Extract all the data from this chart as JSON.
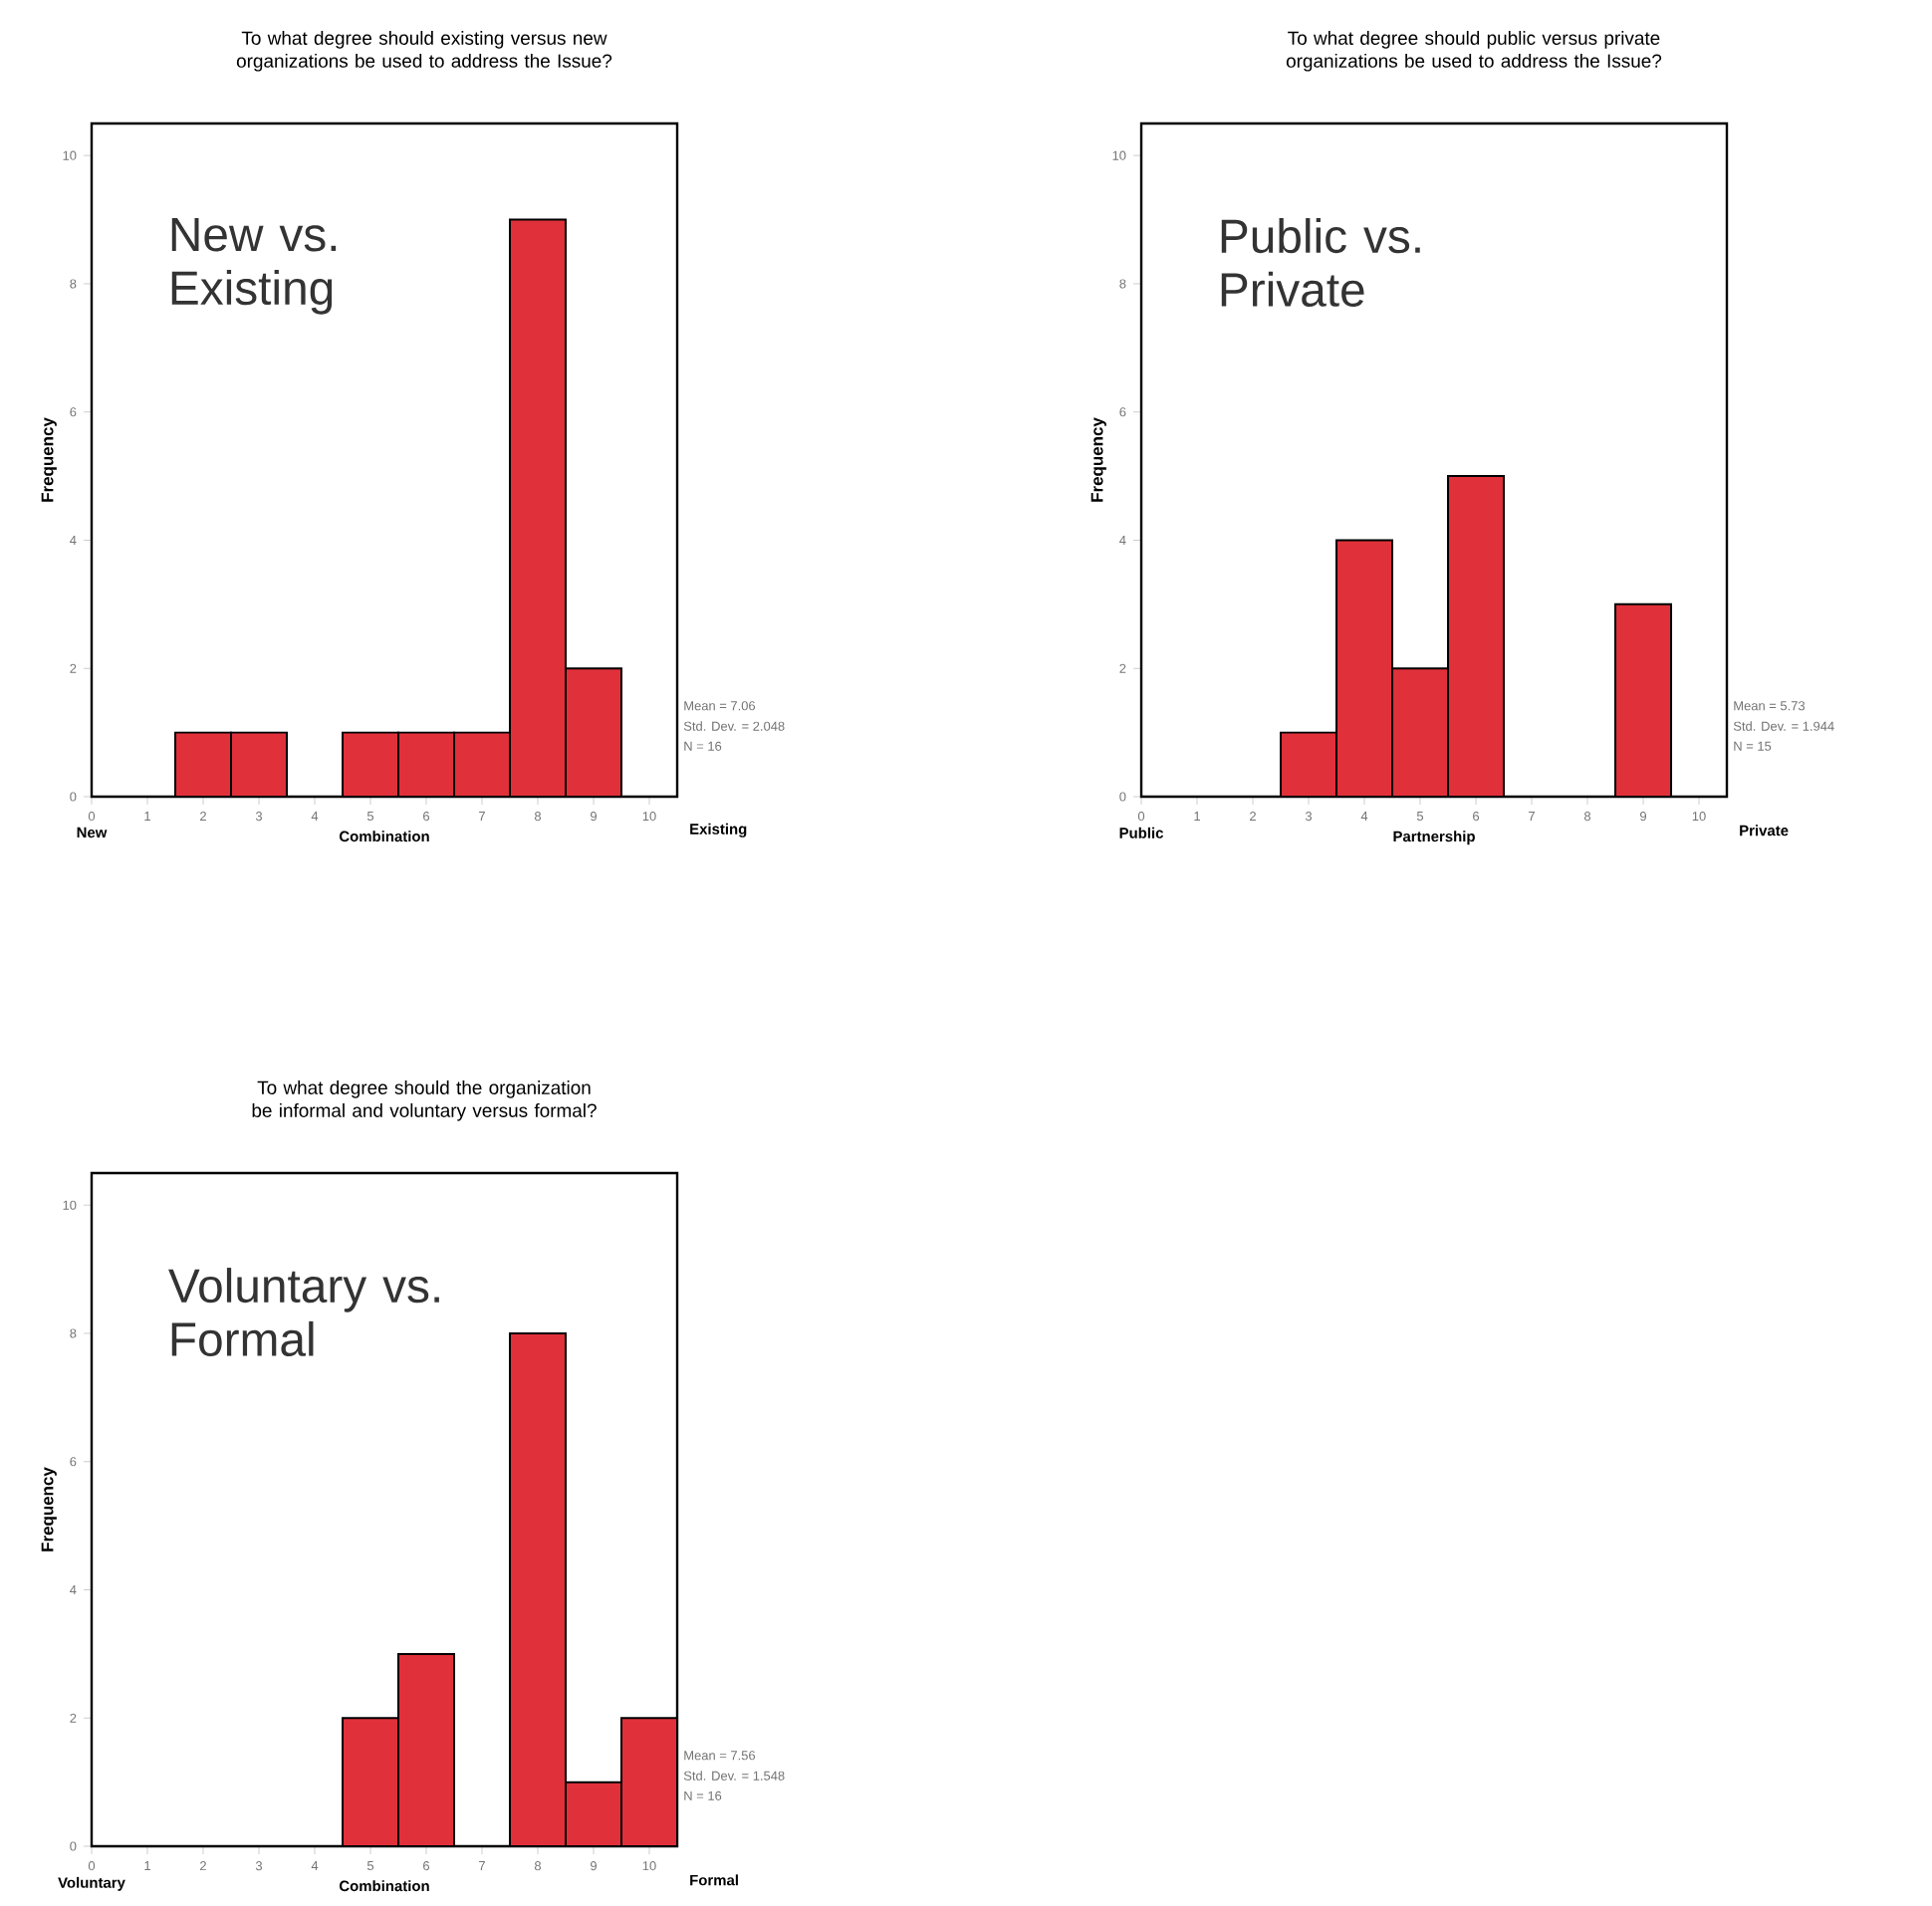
{
  "chart_data": [
    {
      "type": "histogram",
      "title": "To what degree should existing versus new organizations be used to address the Issue?",
      "ylabel": "Frequency",
      "bins": [
        0.5,
        1.5,
        2.5,
        3.5,
        4.5,
        5.5,
        6.5,
        7.5,
        8.5,
        9.5,
        10.5
      ],
      "values": [
        0,
        1,
        1,
        0,
        1,
        1,
        1,
        9,
        2,
        0
      ],
      "color": "#e0303a",
      "xlim": [
        0,
        10.5
      ],
      "ylim": [
        0,
        10.5
      ],
      "xticks": [
        0,
        1,
        2,
        3,
        4,
        5,
        6,
        7,
        8,
        9,
        10
      ],
      "yticks": [
        0,
        2,
        4,
        6,
        8,
        10
      ],
      "annotations": [
        "New vs. Existing",
        "New",
        "Combination",
        "Existing",
        "Mean = 7.06",
        "Std. Dev. = 2.048",
        "N = 16"
      ]
    },
    {
      "type": "histogram",
      "title": "To what degree should public versus private organizations be used to address the Issue?",
      "ylabel": "Frequency",
      "bins": [
        0.5,
        1.5,
        2.5,
        3.5,
        4.5,
        5.5,
        6.5,
        7.5,
        8.5,
        9.5,
        10.5
      ],
      "values": [
        0,
        0,
        1,
        4,
        2,
        5,
        0,
        0,
        3,
        0
      ],
      "color": "#e0303a",
      "xlim": [
        0,
        10.5
      ],
      "ylim": [
        0,
        10.5
      ],
      "xticks": [
        0,
        1,
        2,
        3,
        4,
        5,
        6,
        7,
        8,
        9,
        10
      ],
      "yticks": [
        0,
        2,
        4,
        6,
        8,
        10
      ],
      "annotations": [
        "Public vs. Private",
        "Public",
        "Partnership",
        "Private",
        "Mean = 5.73",
        "Std. Dev. = 1.944",
        "N = 15"
      ]
    },
    {
      "type": "histogram",
      "title": "To what degree should the organization be informal and voluntary versus formal?",
      "ylabel": "Frequency",
      "bins": [
        0.5,
        1.5,
        2.5,
        3.5,
        4.5,
        5.5,
        6.5,
        7.5,
        8.5,
        9.5,
        10.5
      ],
      "values": [
        0,
        0,
        0,
        0,
        2,
        3,
        0,
        8,
        1,
        2
      ],
      "color": "#e0303a",
      "xlim": [
        0,
        10.5
      ],
      "ylim": [
        0,
        10.5
      ],
      "xticks": [
        0,
        1,
        2,
        3,
        4,
        5,
        6,
        7,
        8,
        9,
        10
      ],
      "yticks": [
        0,
        2,
        4,
        6,
        8,
        10
      ],
      "annotations": [
        "Voluntary vs. Formal",
        "Voluntary",
        "Combination",
        "Formal",
        "Mean = 7.56",
        "Std. Dev. = 1.548",
        "N = 16"
      ]
    }
  ]
}
